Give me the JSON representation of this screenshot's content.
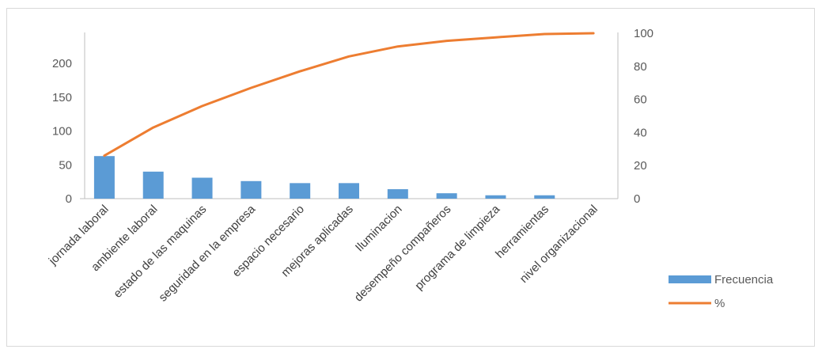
{
  "chart_data": {
    "type": "bar",
    "categories": [
      "jornada laboral",
      "ambiente laboral",
      "estado de las maquinas",
      "seguridad en la empresa",
      "espacio necesario",
      "mejoras aplicadas",
      "Iluminacion",
      "desempeño compañeros",
      "programa de limpieza",
      "herramientas",
      "nivel organizacional"
    ],
    "series": [
      {
        "name": "Frecuencia",
        "type": "bar",
        "axis": "left",
        "color": "#5B9BD5",
        "values": [
          63,
          40,
          31,
          26,
          23,
          23,
          14,
          8,
          5,
          5,
          0
        ]
      },
      {
        "name": "%",
        "type": "line",
        "axis": "right",
        "color": "#ED7D31",
        "values": [
          26,
          43,
          56,
          67,
          77,
          86,
          92,
          95.4,
          97.5,
          99.5,
          100
        ]
      }
    ],
    "left_axis": {
      "ticks": [
        "0",
        "50",
        "100",
        "150",
        "200"
      ],
      "ylim": [
        0,
        250
      ]
    },
    "right_axis": {
      "ticks": [
        "0",
        "20",
        "40",
        "60",
        "80",
        "100"
      ],
      "ylim": [
        0,
        100
      ]
    },
    "title": "",
    "xlabel": "",
    "ylabel": "",
    "grid": false,
    "legend_position": "bottom-right"
  }
}
